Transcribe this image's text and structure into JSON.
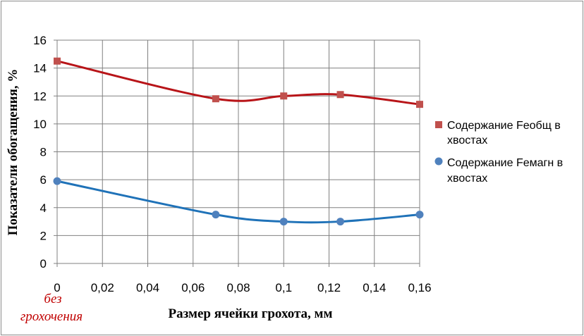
{
  "chart_data": {
    "type": "scatter",
    "title": "",
    "xlabel": "Размер ячейки грохота, мм",
    "ylabel": "Показатели обогащения, %",
    "xlim": [
      0,
      0.16
    ],
    "ylim": [
      0,
      16
    ],
    "x_ticks": [
      "0",
      "0,02",
      "0,04",
      "0,06",
      "0,08",
      "0,1",
      "0,12",
      "0,14",
      "0,16"
    ],
    "y_ticks": [
      "0",
      "2",
      "4",
      "6",
      "8",
      "10",
      "12",
      "14",
      "16"
    ],
    "grid": true,
    "smooth": true,
    "legend_position": "right",
    "annotation": [
      "без",
      "грохочения"
    ],
    "series": [
      {
        "name": [
          "Содержание Feобщ в",
          "хвостах"
        ],
        "marker": "square",
        "color": "#c0504d",
        "line_color": "#b81418",
        "x": [
          0,
          0.07,
          0.1,
          0.125,
          0.16
        ],
        "y": [
          14.5,
          11.8,
          12.0,
          12.1,
          11.4
        ]
      },
      {
        "name": [
          "Содержание Feмагн в",
          "хвостах"
        ],
        "marker": "circle",
        "color": "#4f81bd",
        "line_color": "#1f72b8",
        "x": [
          0,
          0.07,
          0.1,
          0.125,
          0.16
        ],
        "y": [
          5.9,
          3.5,
          3.0,
          3.0,
          3.5
        ]
      }
    ]
  }
}
